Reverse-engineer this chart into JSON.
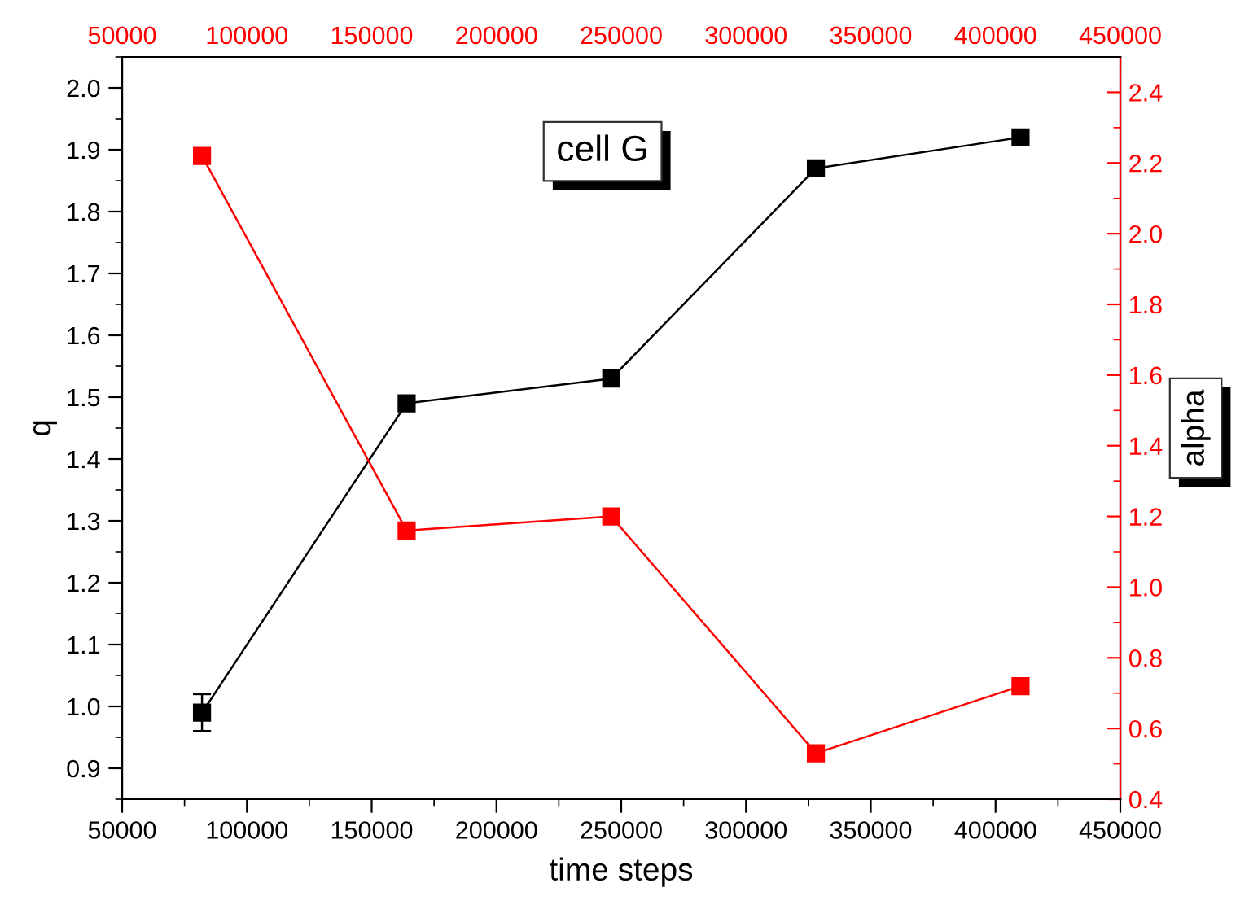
{
  "chart_data": {
    "type": "line",
    "xlabel": "time steps",
    "ylabel": "q",
    "y2label": "alpha",
    "annotations": [
      "cell G"
    ],
    "x": [
      82000,
      164000,
      246000,
      328000,
      410000
    ],
    "series": [
      {
        "color": "#000000",
        "values": [
          0.99,
          1.49,
          1.53,
          1.87,
          1.92
        ],
        "errors": [
          0.03,
          null,
          null,
          null,
          null
        ]
      },
      {
        "color": "#ff0000",
        "values": [
          2.22,
          1.16,
          1.2,
          0.53,
          0.72
        ],
        "axis": "y2"
      }
    ],
    "xlim": [
      50000,
      450000
    ],
    "xticks": [
      50000,
      100000,
      150000,
      200000,
      250000,
      300000,
      350000,
      400000,
      450000
    ],
    "x2lim": [
      50000,
      450000
    ],
    "x2ticks": [
      50000,
      100000,
      150000,
      200000,
      250000,
      300000,
      350000,
      400000,
      450000
    ],
    "ylim": [
      0.85,
      2.05
    ],
    "yticks": [
      0.9,
      {
        "value": 1,
        "label": "1.0"
      },
      1.1,
      1.2,
      1.3,
      1.4,
      1.5,
      1.6,
      1.7,
      1.8,
      1.9,
      {
        "value": 2,
        "label": "2.0"
      }
    ],
    "y2lim": [
      0.4,
      2.5
    ],
    "y2ticks": [
      0.4,
      0.6,
      0.8,
      {
        "value": 1,
        "label": "1.0"
      },
      1.2,
      1.4,
      1.6,
      1.8,
      {
        "value": 2,
        "label": "2.0"
      },
      2.2,
      2.4
    ],
    "marker": "square",
    "line_style": "solid",
    "grid": false,
    "legend": false
  }
}
